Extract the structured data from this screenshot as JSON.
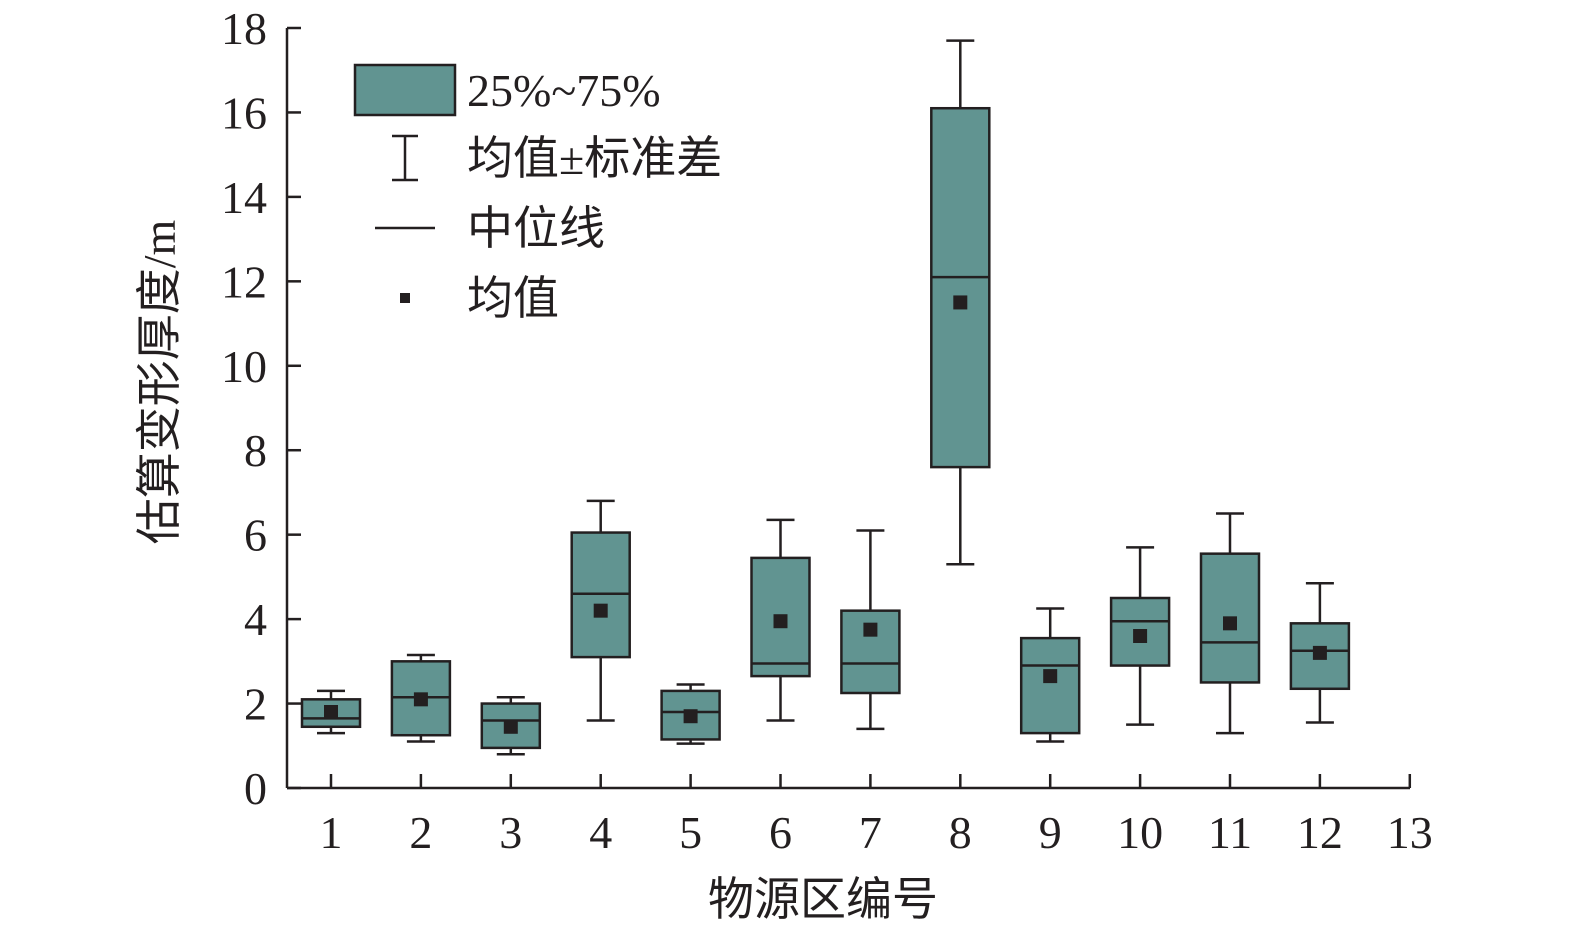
{
  "chart_data": {
    "type": "boxplot",
    "xlabel": "物源区编号",
    "ylabel": "估算变形厚度/m",
    "xlim": [
      0.5,
      13
    ],
    "ylim": [
      0,
      18
    ],
    "x_ticks": [
      "1",
      "2",
      "3",
      "4",
      "5",
      "6",
      "7",
      "8",
      "9",
      "10",
      "11",
      "12",
      "13"
    ],
    "y_ticks": [
      "0",
      "2",
      "4",
      "6",
      "8",
      "10",
      "12",
      "14",
      "16",
      "18"
    ],
    "box_color": "#619491",
    "legend": {
      "position": "top-left",
      "entries": [
        {
          "label": "25%~75%",
          "symbol": "box"
        },
        {
          "label": "均值±标准差",
          "symbol": "whisker"
        },
        {
          "label": "中位线",
          "symbol": "line"
        },
        {
          "label": "均值",
          "symbol": "square"
        }
      ]
    },
    "boxes": [
      {
        "x": 1,
        "q1": 1.45,
        "q3": 2.1,
        "median": 1.65,
        "mean": 1.8,
        "whisker_low": 1.3,
        "whisker_high": 2.3
      },
      {
        "x": 2,
        "q1": 1.25,
        "q3": 3.0,
        "median": 2.15,
        "mean": 2.1,
        "whisker_low": 1.1,
        "whisker_high": 3.15
      },
      {
        "x": 3,
        "q1": 0.95,
        "q3": 2.0,
        "median": 1.6,
        "mean": 1.45,
        "whisker_low": 0.8,
        "whisker_high": 2.15
      },
      {
        "x": 4,
        "q1": 3.1,
        "q3": 6.05,
        "median": 4.6,
        "mean": 4.2,
        "whisker_low": 1.6,
        "whisker_high": 6.8
      },
      {
        "x": 5,
        "q1": 1.15,
        "q3": 2.3,
        "median": 1.8,
        "mean": 1.7,
        "whisker_low": 1.05,
        "whisker_high": 2.45
      },
      {
        "x": 6,
        "q1": 2.65,
        "q3": 5.45,
        "median": 2.95,
        "mean": 3.95,
        "whisker_low": 1.6,
        "whisker_high": 6.35
      },
      {
        "x": 7,
        "q1": 2.25,
        "q3": 4.2,
        "median": 2.95,
        "mean": 3.75,
        "whisker_low": 1.4,
        "whisker_high": 6.1
      },
      {
        "x": 8,
        "q1": 7.6,
        "q3": 16.1,
        "median": 12.1,
        "mean": 11.5,
        "whisker_low": 5.3,
        "whisker_high": 17.7
      },
      {
        "x": 9,
        "q1": 1.3,
        "q3": 3.55,
        "median": 2.9,
        "mean": 2.65,
        "whisker_low": 1.1,
        "whisker_high": 4.25
      },
      {
        "x": 10,
        "q1": 2.9,
        "q3": 4.5,
        "median": 3.95,
        "mean": 3.6,
        "whisker_low": 1.5,
        "whisker_high": 5.7
      },
      {
        "x": 11,
        "q1": 2.5,
        "q3": 5.55,
        "median": 3.45,
        "mean": 3.9,
        "whisker_low": 1.3,
        "whisker_high": 6.5
      },
      {
        "x": 12,
        "q1": 2.35,
        "q3": 3.9,
        "median": 3.25,
        "mean": 3.2,
        "whisker_low": 1.55,
        "whisker_high": 4.85
      }
    ]
  }
}
